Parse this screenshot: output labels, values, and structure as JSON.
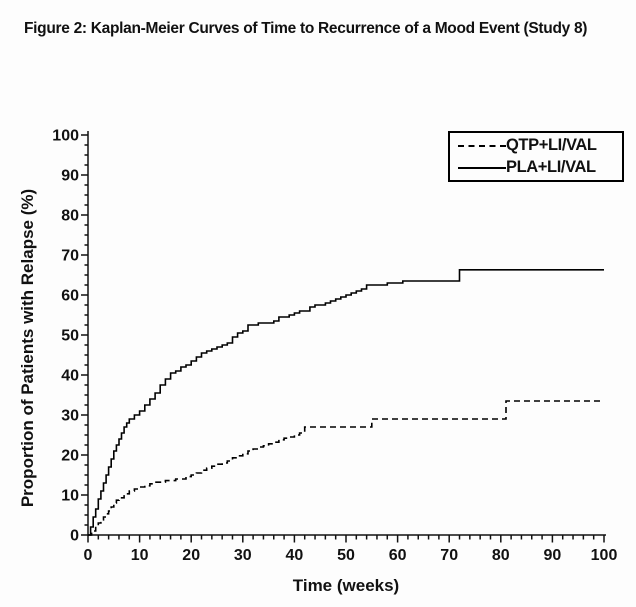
{
  "figure": {
    "title": "Figure 2: Kaplan-Meier Curves of Time to Recurrence of a Mood Event (Study 8)"
  },
  "colors": {
    "line": "#000000",
    "text": "#111111",
    "background": "#fdfdfd"
  },
  "chart_data": {
    "type": "line",
    "subtype": "kaplan-meier-step",
    "title": "Figure 2: Kaplan-Meier Curves of Time to Recurrence of a Mood Event (Study 8)",
    "xlabel": "Time (weeks)",
    "ylabel": "Proportion of Patients with Relapse (%)",
    "xlim": [
      0,
      100
    ],
    "ylim": [
      0,
      100
    ],
    "x_major_tick_step": 10,
    "x_minor_tick_step": 2,
    "y_major_tick_step": 10,
    "y_minor_tick_step": 2.5,
    "x_tick_labels": [
      "0",
      "10",
      "20",
      "30",
      "40",
      "50",
      "60",
      "70",
      "80",
      "90",
      "100"
    ],
    "y_tick_labels": [
      "0",
      "10",
      "20",
      "30",
      "40",
      "50",
      "60",
      "70",
      "80",
      "90",
      "100"
    ],
    "grid": false,
    "legend_position": "top-right",
    "series": [
      {
        "name": "QTP+LI/VAL",
        "style": "dashed",
        "color": "#000000",
        "points": [
          [
            0,
            0
          ],
          [
            0.7,
            1
          ],
          [
            1.5,
            2.2
          ],
          [
            2,
            3
          ],
          [
            2.5,
            3.8
          ],
          [
            3,
            4.5
          ],
          [
            3.5,
            5.3
          ],
          [
            4,
            6
          ],
          [
            4.5,
            7
          ],
          [
            5,
            8
          ],
          [
            5.5,
            8.7
          ],
          [
            6,
            9.3
          ],
          [
            7,
            10.3
          ],
          [
            8,
            11
          ],
          [
            9,
            11.5
          ],
          [
            10,
            12
          ],
          [
            11,
            12.3
          ],
          [
            12,
            12.8
          ],
          [
            13,
            13.2
          ],
          [
            15,
            13.6
          ],
          [
            17,
            14
          ],
          [
            19,
            14.6
          ],
          [
            20,
            15
          ],
          [
            21,
            15.5
          ],
          [
            22,
            16.2
          ],
          [
            23,
            16.7
          ],
          [
            24,
            17.2
          ],
          [
            25,
            17.7
          ],
          [
            26,
            18
          ],
          [
            27,
            18.5
          ],
          [
            28,
            19.3
          ],
          [
            29,
            19.8
          ],
          [
            30,
            20.3
          ],
          [
            31,
            21
          ],
          [
            32,
            21.5
          ],
          [
            33,
            22
          ],
          [
            34,
            22.3
          ],
          [
            35,
            22.8
          ],
          [
            36,
            23.2
          ],
          [
            37,
            23.8
          ],
          [
            38,
            24.2
          ],
          [
            39,
            24.5
          ],
          [
            40,
            25
          ],
          [
            41,
            25.5
          ],
          [
            42,
            27
          ],
          [
            54,
            27
          ],
          [
            55,
            29
          ],
          [
            80.5,
            29
          ],
          [
            81,
            33.5
          ],
          [
            100,
            33.5
          ]
        ]
      },
      {
        "name": "PLA+LI/VAL",
        "style": "solid",
        "color": "#000000",
        "points": [
          [
            0,
            0
          ],
          [
            0.5,
            2
          ],
          [
            1,
            4.5
          ],
          [
            1.5,
            6.5
          ],
          [
            2,
            9
          ],
          [
            2.5,
            11
          ],
          [
            3,
            13
          ],
          [
            3.5,
            15
          ],
          [
            4,
            17
          ],
          [
            4.5,
            19
          ],
          [
            5,
            21
          ],
          [
            5.5,
            22.5
          ],
          [
            6,
            24
          ],
          [
            6.5,
            25.5
          ],
          [
            7,
            27
          ],
          [
            7.5,
            28
          ],
          [
            8,
            29
          ],
          [
            9,
            30
          ],
          [
            10,
            31
          ],
          [
            11,
            32.5
          ],
          [
            12,
            34
          ],
          [
            13,
            35.5
          ],
          [
            14,
            37.5
          ],
          [
            15,
            39
          ],
          [
            16,
            40.5
          ],
          [
            17,
            41
          ],
          [
            18,
            42
          ],
          [
            19,
            42.5
          ],
          [
            20,
            43.5
          ],
          [
            21,
            44.5
          ],
          [
            22,
            45.5
          ],
          [
            23,
            46
          ],
          [
            24,
            46.5
          ],
          [
            25,
            47
          ],
          [
            26,
            47.5
          ],
          [
            27,
            48
          ],
          [
            28,
            49.5
          ],
          [
            29,
            50.5
          ],
          [
            30,
            51
          ],
          [
            31,
            52.5
          ],
          [
            33,
            53
          ],
          [
            36,
            53.5
          ],
          [
            37,
            54.5
          ],
          [
            39,
            55
          ],
          [
            40,
            55.5
          ],
          [
            41,
            56
          ],
          [
            43,
            57
          ],
          [
            44,
            57.5
          ],
          [
            46,
            58
          ],
          [
            47,
            58.5
          ],
          [
            48,
            59
          ],
          [
            49,
            59.5
          ],
          [
            50,
            60
          ],
          [
            51,
            60.5
          ],
          [
            52,
            61
          ],
          [
            53,
            61.5
          ],
          [
            54,
            62.5
          ],
          [
            58,
            63
          ],
          [
            61,
            63.5
          ],
          [
            72,
            66.3
          ],
          [
            100,
            66.3
          ]
        ]
      }
    ]
  }
}
